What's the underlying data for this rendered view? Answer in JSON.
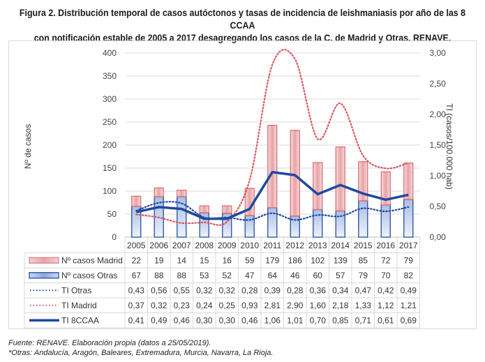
{
  "title_line1": "Figura 2.   Distribución temporal de casos autóctonos y tasas de incidencia de leishmaniasis por año de las 8 CCAA",
  "title_line2": "con notificación estable de 2005 a 2017 desagregando los casos de la C. de Madrid y Otras. RENAVE.",
  "footnote1": "Fuente: RENAVE. Elaboración propia (datos a 25/05/2019).",
  "footnote2": "*Otras: Andalucía, Aragón, Baleares, Extremadura, Murcia, Navarra, La Rioja.",
  "chart_data": {
    "type": "bar",
    "stacked": true,
    "xlabel": "",
    "ylabel": "Nº de casos",
    "y2label": "TI (casos/100.000 hab)",
    "ylim": [
      0,
      400
    ],
    "y2lim": [
      0,
      3
    ],
    "yticks": [
      "0",
      "50",
      "100",
      "150",
      "200",
      "250",
      "300",
      "350",
      "400"
    ],
    "y2ticks": [
      "0,00",
      "0,50",
      "1,00",
      "1,50",
      "2,00",
      "2,50",
      "3,00"
    ],
    "grid": true,
    "legend": "data-table-bottom",
    "categories": [
      "2005",
      "2006",
      "2007",
      "2008",
      "2009",
      "2010",
      "2011",
      "2012",
      "2013",
      "2014",
      "2015",
      "2016",
      "2017"
    ],
    "series": [
      {
        "name": "Nº casos Madrid",
        "kind": "bar",
        "axis": "left",
        "color": "#d9686e",
        "values": [
          22,
          19,
          14,
          15,
          16,
          59,
          179,
          186,
          102,
          139,
          85,
          72,
          79
        ],
        "labels": [
          "22",
          "19",
          "14",
          "15",
          "16",
          "59",
          "179",
          "186",
          "102",
          "139",
          "85",
          "72",
          "79"
        ]
      },
      {
        "name": "Nº casos Otras",
        "kind": "bar",
        "axis": "left",
        "color": "#2f5aa8",
        "values": [
          67,
          88,
          88,
          53,
          52,
          47,
          64,
          46,
          60,
          57,
          79,
          70,
          82
        ],
        "labels": [
          "67",
          "88",
          "88",
          "53",
          "52",
          "47",
          "64",
          "46",
          "60",
          "57",
          "79",
          "70",
          "82"
        ]
      },
      {
        "name": "TI Otras",
        "kind": "line-dotted",
        "axis": "right",
        "color": "#1f48a0",
        "values": [
          0.43,
          0.56,
          0.55,
          0.32,
          0.32,
          0.28,
          0.39,
          0.28,
          0.36,
          0.34,
          0.47,
          0.42,
          0.49
        ],
        "labels": [
          "0,43",
          "0,56",
          "0,55",
          "0,32",
          "0,32",
          "0,28",
          "0,39",
          "0,28",
          "0,36",
          "0,34",
          "0,47",
          "0,42",
          "0,49"
        ]
      },
      {
        "name": "TI Madrid",
        "kind": "line-dotted",
        "axis": "right",
        "color": "#d9545c",
        "values": [
          0.37,
          0.32,
          0.23,
          0.24,
          0.25,
          0.93,
          2.81,
          2.9,
          1.6,
          2.18,
          1.33,
          1.12,
          1.21
        ],
        "labels": [
          "0,37",
          "0,32",
          "0,23",
          "0,24",
          "0,25",
          "0,93",
          "2,81",
          "2,90",
          "1,60",
          "2,18",
          "1,33",
          "1,12",
          "1,21"
        ]
      },
      {
        "name": "TI 8CCAA",
        "kind": "line-solid",
        "axis": "right",
        "color": "#1f48a0",
        "values": [
          0.41,
          0.49,
          0.46,
          0.3,
          0.3,
          0.46,
          1.06,
          1.01,
          0.7,
          0.85,
          0.71,
          0.61,
          0.69
        ],
        "labels": [
          "0,41",
          "0,49",
          "0,46",
          "0,30",
          "0,30",
          "0,46",
          "1,06",
          "1,01",
          "0,70",
          "0,85",
          "0,71",
          "0,61",
          "0,69"
        ]
      }
    ]
  }
}
